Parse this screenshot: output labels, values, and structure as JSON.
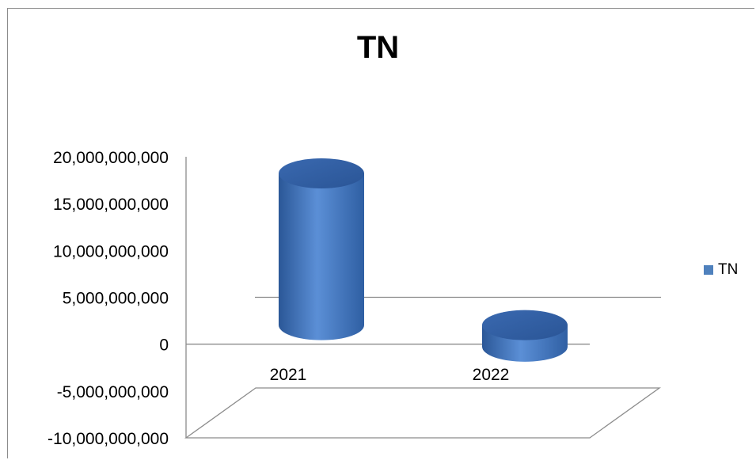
{
  "chart_data": {
    "type": "bar",
    "title": "TN",
    "categories": [
      "2021",
      "2022"
    ],
    "series": [
      {
        "name": "TN",
        "values": [
          16200000000,
          -2300000000
        ],
        "color": "#4f81bd"
      }
    ],
    "ylim": [
      -10000000000,
      20000000000
    ],
    "yticks": [
      "20,000,000,000",
      "15,000,000,000",
      "10,000,000,000",
      "5,000,000,000",
      "0",
      "-5,000,000,000",
      "-10,000,000,000"
    ],
    "legend_position": "right",
    "style": "3d-cylinder"
  }
}
